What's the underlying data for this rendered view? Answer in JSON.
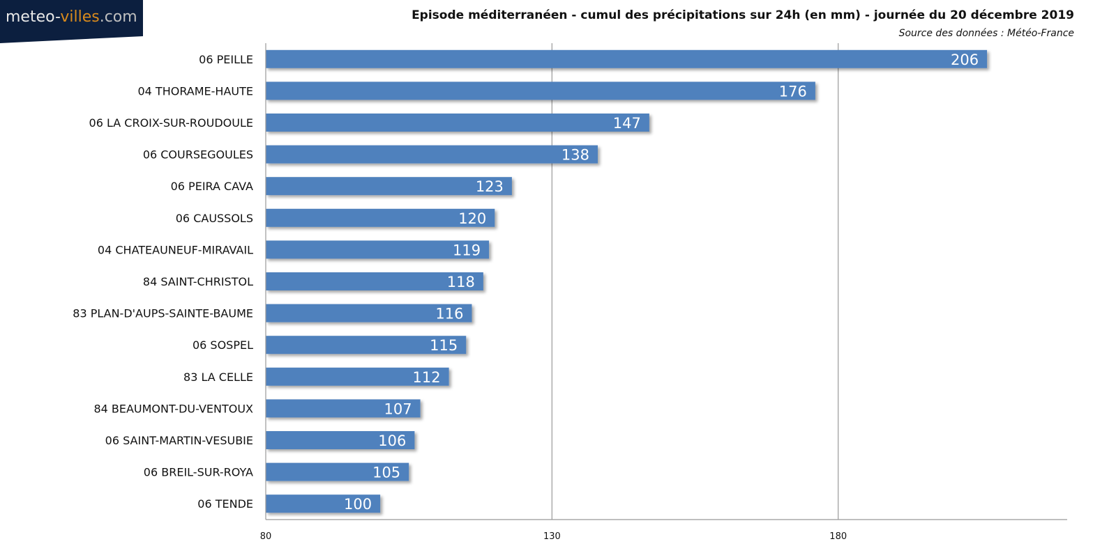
{
  "logo": {
    "part1": "meteo-",
    "part2": "villes",
    "part3": ".com",
    "bg_color": "#0c1f3f",
    "accent_color": "#d98a1c"
  },
  "chart_data": {
    "type": "bar",
    "orientation": "horizontal",
    "title": "Episode méditerranéen - cumul des précipitations sur 24h (en mm) - journée du 20 décembre 2019",
    "subtitle": "Source des données : Météo-France",
    "categories": [
      "06 PEILLE",
      "04 THORAME-HAUTE",
      "06 LA CROIX-SUR-ROUDOULE",
      "06 COURSEGOULES",
      "06 PEIRA CAVA",
      "06 CAUSSOLS",
      "04 CHATEAUNEUF-MIRAVAIL",
      "84 SAINT-CHRISTOL",
      "83 PLAN-D'AUPS-SAINTE-BAUME",
      "06 SOSPEL",
      "83 LA CELLE",
      "84 BEAUMONT-DU-VENTOUX",
      "06 SAINT-MARTIN-VESUBIE",
      "06 BREIL-SUR-ROYA",
      "06 TENDE"
    ],
    "values": [
      206,
      176,
      147,
      138,
      123,
      120,
      119,
      118,
      116,
      115,
      112,
      107,
      106,
      105,
      100
    ],
    "xlim": [
      80,
      220
    ],
    "xticks": [
      80,
      130,
      180
    ],
    "grid": true,
    "bar_color": "#4f81bd",
    "data_labels": true
  }
}
